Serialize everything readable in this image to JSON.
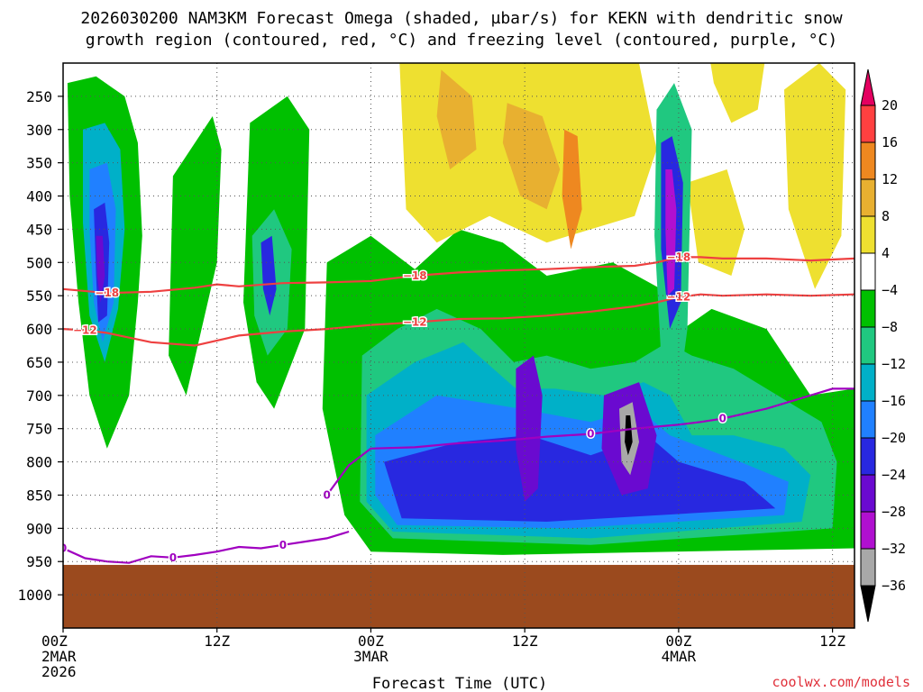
{
  "chart_data": {
    "type": "heatmap",
    "title_line1": "2026030200 NAM3KM Forecast Omega (shaded, µbar/s) for KEKN with dendritic snow",
    "title_line2": "growth region (contoured, red, °C) and freezing level (contoured, purple, °C)",
    "xlabel": "Forecast Time (UTC)",
    "credit": "coolwx.com/models",
    "x_range_hours": [
      0,
      36
    ],
    "y_range_hpa": [
      200,
      1050
    ],
    "ground_level_hpa": 955,
    "y_ticks": [
      250,
      300,
      350,
      400,
      450,
      500,
      550,
      600,
      650,
      700,
      750,
      800,
      850,
      900,
      950,
      1000
    ],
    "x_ticks": [
      {
        "hour": 0,
        "lines": [
          "00Z",
          "2MAR",
          "2026"
        ]
      },
      {
        "hour": 7,
        "lines": [
          "12Z"
        ]
      },
      {
        "hour": 14,
        "lines": [
          "00Z",
          "3MAR"
        ]
      },
      {
        "hour": 21,
        "lines": [
          "12Z"
        ]
      },
      {
        "hour": 28,
        "lines": [
          "00Z",
          "4MAR"
        ]
      },
      {
        "hour": 35,
        "lines": [
          "12Z"
        ]
      }
    ],
    "colorbar": {
      "labels": [
        "20",
        "16",
        "12",
        "8",
        "4",
        "−4",
        "−8",
        "−12",
        "−16",
        "−20",
        "−24",
        "−28",
        "−32",
        "−36"
      ],
      "colors": [
        "#e40060",
        "#ff4040",
        "#ee8820",
        "#e8b030",
        "#eee030",
        "#ffffff",
        "#00c000",
        "#20c880",
        "#00b0c8",
        "#2080ff",
        "#2828e0",
        "#6a0ad0",
        "#b010d0",
        "#a8a8a8",
        "#000000"
      ]
    },
    "omega_features": [
      {
        "shape": [
          [
            0.2,
            230
          ],
          [
            1.5,
            220
          ],
          [
            2.8,
            250
          ],
          [
            3.4,
            320
          ],
          [
            3.6,
            460
          ],
          [
            3.4,
            560
          ],
          [
            3.0,
            700
          ],
          [
            2.0,
            780
          ],
          [
            1.2,
            700
          ],
          [
            0.7,
            560
          ],
          [
            0.3,
            400
          ]
        ],
        "level": 6
      },
      {
        "shape": [
          [
            0.9,
            300
          ],
          [
            1.9,
            290
          ],
          [
            2.6,
            330
          ],
          [
            2.8,
            450
          ],
          [
            2.5,
            570
          ],
          [
            1.9,
            650
          ],
          [
            1.2,
            580
          ],
          [
            0.9,
            440
          ]
        ],
        "level": 8
      },
      {
        "shape": [
          [
            1.2,
            360
          ],
          [
            2.0,
            350
          ],
          [
            2.4,
            420
          ],
          [
            2.3,
            560
          ],
          [
            1.8,
            620
          ],
          [
            1.4,
            560
          ],
          [
            1.2,
            450
          ]
        ],
        "level": 9
      },
      {
        "shape": [
          [
            1.4,
            420
          ],
          [
            1.9,
            410
          ],
          [
            2.1,
            470
          ],
          [
            2.0,
            580
          ],
          [
            1.6,
            590
          ],
          [
            1.5,
            520
          ]
        ],
        "level": 10
      },
      {
        "shape": [
          [
            1.5,
            460
          ],
          [
            1.8,
            460
          ],
          [
            1.9,
            520
          ],
          [
            1.7,
            560
          ],
          [
            1.55,
            520
          ]
        ],
        "level": 11
      },
      {
        "shape": [
          [
            5.0,
            370
          ],
          [
            6.8,
            280
          ],
          [
            7.2,
            330
          ],
          [
            7.0,
            500
          ],
          [
            5.6,
            700
          ],
          [
            4.8,
            640
          ]
        ],
        "level": 6
      },
      {
        "shape": [
          [
            8.5,
            290
          ],
          [
            10.2,
            250
          ],
          [
            11.2,
            300
          ],
          [
            11.0,
            600
          ],
          [
            9.6,
            720
          ],
          [
            8.8,
            680
          ],
          [
            8.2,
            560
          ]
        ],
        "level": 6
      },
      {
        "shape": [
          [
            8.6,
            460
          ],
          [
            9.6,
            420
          ],
          [
            10.4,
            480
          ],
          [
            10.2,
            600
          ],
          [
            9.3,
            640
          ],
          [
            8.7,
            580
          ]
        ],
        "level": 7
      },
      {
        "shape": [
          [
            9.0,
            470
          ],
          [
            9.5,
            460
          ],
          [
            9.7,
            540
          ],
          [
            9.4,
            580
          ],
          [
            9.1,
            540
          ]
        ],
        "level": 10
      },
      {
        "shape": [
          [
            12.0,
            500
          ],
          [
            14.0,
            460
          ],
          [
            16.0,
            510
          ],
          [
            18.0,
            450
          ],
          [
            20.0,
            470
          ],
          [
            22.0,
            520
          ],
          [
            25.0,
            500
          ],
          [
            27.2,
            540
          ],
          [
            28.2,
            600
          ],
          [
            29.5,
            570
          ],
          [
            32.0,
            600
          ],
          [
            34.0,
            700
          ],
          [
            36.0,
            690
          ],
          [
            36.0,
            930
          ],
          [
            20.0,
            940
          ],
          [
            14.0,
            935
          ],
          [
            12.8,
            880
          ],
          [
            11.8,
            720
          ]
        ],
        "level": 6
      },
      {
        "shape": [
          [
            13.6,
            640
          ],
          [
            15.2,
            600
          ],
          [
            17.0,
            570
          ],
          [
            19.0,
            600
          ],
          [
            20.5,
            650
          ],
          [
            22.0,
            640
          ],
          [
            24.0,
            660
          ],
          [
            26.0,
            650
          ],
          [
            27.5,
            620
          ],
          [
            28.6,
            640
          ],
          [
            30.5,
            660
          ],
          [
            32.5,
            700
          ],
          [
            34.5,
            740
          ],
          [
            35.2,
            800
          ],
          [
            35.0,
            900
          ],
          [
            24.0,
            925
          ],
          [
            15.0,
            915
          ],
          [
            13.5,
            860
          ]
        ],
        "level": 7
      },
      {
        "shape": [
          [
            13.8,
            700
          ],
          [
            16.0,
            650
          ],
          [
            18.2,
            620
          ],
          [
            20.6,
            690
          ],
          [
            22.4,
            690
          ],
          [
            24.6,
            700
          ],
          [
            26.4,
            680
          ],
          [
            27.6,
            700
          ],
          [
            28.6,
            760
          ],
          [
            30.5,
            760
          ],
          [
            32.8,
            780
          ],
          [
            34.0,
            820
          ],
          [
            33.6,
            890
          ],
          [
            24.0,
            915
          ],
          [
            15.0,
            905
          ],
          [
            13.8,
            860
          ]
        ],
        "level": 8
      },
      {
        "shape": [
          [
            14.2,
            760
          ],
          [
            17.0,
            700
          ],
          [
            20.8,
            720
          ],
          [
            24.0,
            740
          ],
          [
            26.2,
            720
          ],
          [
            27.6,
            760
          ],
          [
            30.8,
            800
          ],
          [
            33.0,
            830
          ],
          [
            32.8,
            880
          ],
          [
            23.0,
            900
          ],
          [
            15.2,
            895
          ],
          [
            14.2,
            850
          ]
        ],
        "level": 9
      },
      {
        "shape": [
          [
            14.6,
            800
          ],
          [
            18.0,
            770
          ],
          [
            21.2,
            760
          ],
          [
            24.0,
            790
          ],
          [
            26.6,
            760
          ],
          [
            28.0,
            800
          ],
          [
            31.0,
            830
          ],
          [
            32.4,
            870
          ],
          [
            22.0,
            890
          ],
          [
            15.4,
            885
          ]
        ],
        "level": 10
      },
      {
        "shape": [
          [
            20.6,
            660
          ],
          [
            21.4,
            640
          ],
          [
            21.8,
            700
          ],
          [
            21.6,
            840
          ],
          [
            21.0,
            860
          ],
          [
            20.6,
            780
          ]
        ],
        "level": 11
      },
      {
        "shape": [
          [
            24.6,
            700
          ],
          [
            26.2,
            680
          ],
          [
            27.0,
            760
          ],
          [
            26.6,
            840
          ],
          [
            25.4,
            850
          ],
          [
            24.5,
            780
          ]
        ],
        "level": 11
      },
      {
        "shape": [
          [
            25.3,
            720
          ],
          [
            25.9,
            710
          ],
          [
            26.2,
            770
          ],
          [
            25.8,
            820
          ],
          [
            25.4,
            800
          ]
        ],
        "level": 13
      },
      {
        "shape": [
          [
            25.6,
            730
          ],
          [
            25.8,
            730
          ],
          [
            25.9,
            770
          ],
          [
            25.7,
            790
          ],
          [
            25.55,
            770
          ]
        ],
        "level": 14
      },
      {
        "shape": [
          [
            27.0,
            270
          ],
          [
            27.8,
            230
          ],
          [
            28.6,
            300
          ],
          [
            28.4,
            600
          ],
          [
            28.0,
            700
          ],
          [
            27.2,
            640
          ],
          [
            26.9,
            460
          ]
        ],
        "level": 7
      },
      {
        "shape": [
          [
            27.2,
            320
          ],
          [
            27.7,
            310
          ],
          [
            28.2,
            380
          ],
          [
            28.1,
            560
          ],
          [
            27.6,
            600
          ],
          [
            27.2,
            480
          ]
        ],
        "level": 10
      },
      {
        "shape": [
          [
            27.4,
            360
          ],
          [
            27.7,
            360
          ],
          [
            27.9,
            420
          ],
          [
            27.8,
            540
          ],
          [
            27.5,
            550
          ],
          [
            27.4,
            450
          ]
        ],
        "level": 12
      },
      {
        "shape": [
          [
            15.2,
            120
          ],
          [
            18.0,
            150
          ],
          [
            20.0,
            130
          ],
          [
            22.6,
            160
          ],
          [
            24.0,
            200
          ],
          [
            26.2,
            200
          ],
          [
            27.0,
            330
          ],
          [
            26.0,
            430
          ],
          [
            22.0,
            470
          ],
          [
            19.4,
            430
          ],
          [
            17.0,
            470
          ],
          [
            15.6,
            420
          ]
        ],
        "level": 4
      },
      {
        "shape": [
          [
            17.2,
            210
          ],
          [
            18.6,
            250
          ],
          [
            18.8,
            330
          ],
          [
            17.6,
            360
          ],
          [
            17.0,
            280
          ]
        ],
        "level": 3
      },
      {
        "shape": [
          [
            20.2,
            260
          ],
          [
            21.8,
            280
          ],
          [
            22.6,
            360
          ],
          [
            22.0,
            420
          ],
          [
            20.8,
            400
          ],
          [
            20.0,
            320
          ]
        ],
        "level": 3
      },
      {
        "shape": [
          [
            22.8,
            300
          ],
          [
            23.4,
            310
          ],
          [
            23.6,
            420
          ],
          [
            23.1,
            480
          ],
          [
            22.7,
            400
          ]
        ],
        "level": 2
      },
      {
        "shape": [
          [
            29.2,
            150
          ],
          [
            31.0,
            120
          ],
          [
            32.0,
            180
          ],
          [
            31.6,
            270
          ],
          [
            30.4,
            290
          ],
          [
            29.6,
            230
          ]
        ],
        "level": 4
      },
      {
        "shape": [
          [
            32.8,
            240
          ],
          [
            34.4,
            200
          ],
          [
            35.6,
            240
          ],
          [
            35.4,
            460
          ],
          [
            34.2,
            540
          ],
          [
            33.0,
            420
          ]
        ],
        "level": 4
      },
      {
        "shape": [
          [
            28.4,
            380
          ],
          [
            30.2,
            360
          ],
          [
            31.0,
            450
          ],
          [
            30.4,
            520
          ],
          [
            28.9,
            500
          ]
        ],
        "level": 4
      }
    ],
    "contours": [
      {
        "label": "−18",
        "color": "#ee4040",
        "x": [
          0,
          2,
          4,
          6,
          7,
          8,
          10,
          12,
          14,
          16,
          18,
          20,
          22,
          24,
          26,
          27,
          28,
          29,
          30,
          32,
          34,
          36
        ],
        "y": [
          540,
          546,
          544,
          538,
          533,
          536,
          531,
          530,
          528,
          520,
          515,
          512,
          510,
          507,
          505,
          500,
          492,
          492,
          494,
          494,
          497,
          494
        ]
      },
      {
        "label": "−12",
        "color": "#ee4040",
        "x": [
          0,
          1,
          2,
          4,
          6,
          8,
          10,
          12,
          14,
          16,
          18,
          20,
          22,
          24,
          26,
          27,
          28,
          29,
          30,
          32,
          34,
          36
        ],
        "y": [
          600,
          602,
          606,
          620,
          625,
          610,
          604,
          600,
          594,
          590,
          585,
          584,
          580,
          574,
          566,
          560,
          552,
          548,
          550,
          548,
          550,
          548
        ]
      },
      {
        "label": "0",
        "color": "#a000c0",
        "x": [
          12,
          13,
          14,
          16,
          18,
          20,
          22,
          24,
          26,
          27,
          28,
          29,
          30,
          32,
          34,
          35,
          36
        ],
        "y": [
          850,
          805,
          780,
          778,
          772,
          768,
          762,
          758,
          750,
          747,
          744,
          740,
          735,
          720,
          700,
          690,
          690
        ]
      },
      {
        "label": "0",
        "color": "#a000c0",
        "x": [
          0,
          1,
          2,
          3,
          4,
          5,
          6,
          7,
          8,
          9,
          10,
          11,
          12,
          13
        ],
        "y": [
          930,
          945,
          950,
          952,
          942,
          944,
          940,
          935,
          928,
          930,
          925,
          920,
          915,
          905
        ]
      }
    ]
  }
}
